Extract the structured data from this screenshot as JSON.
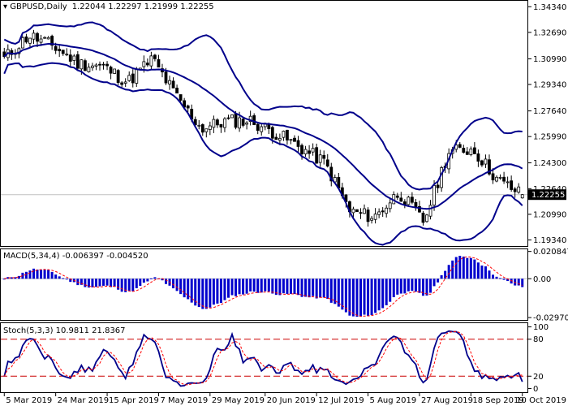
{
  "main_panel": {
    "header": {
      "symbol_label": "GBPUSD,Daily",
      "ohlc_text": "1.22044 1.22297 1.21999 1.22255",
      "arrow_icon": "triangle-down-icon"
    },
    "price_ticks": [
      "1.34340",
      "1.32690",
      "1.30990",
      "1.29340",
      "1.27640",
      "1.25990",
      "1.24300",
      "1.22640",
      "1.20990",
      "1.19340"
    ],
    "current_price": "1.22255",
    "current_price_value": 1.22255,
    "y_range": [
      1.1895,
      1.3472
    ]
  },
  "macd_panel": {
    "header": "MACD(5,34,4) -0.006397 -0.004520",
    "ticks": [
      "0.020847",
      "0.00",
      "-0.029702"
    ],
    "y_range": [
      -0.0315,
      0.0225
    ]
  },
  "stoch_panel": {
    "header": "Stoch(5,3,3) 10.9811 21.8367",
    "ticks": [
      "100",
      "80",
      "20",
      "0"
    ],
    "levels": [
      80,
      20
    ],
    "y_range": [
      -6,
      106
    ]
  },
  "dates": [
    "5 Mar 2019",
    "24 Mar 2019",
    "15 Apr 2019",
    "7 May 2019",
    "29 May 2019",
    "20 Jun 2019",
    "12 Jul 2019",
    "5 Aug 2019",
    "27 Aug 2019",
    "18 Sep 2019",
    "10 Oct 2019"
  ],
  "colors": {
    "background": "#ffffff",
    "border": "#000000",
    "bands": "#00008b",
    "macd_bars": "#0000cd",
    "signal_line": "#ff0000",
    "stoch_main": "#00008b",
    "stoch_signal": "#ff0000",
    "level_lines": "#cc0000",
    "current_price_line": "#c0c0c0",
    "price_tag_bg": "#000000",
    "price_tag_text": "#ffffff"
  },
  "chart_data": {
    "type": "candlestick",
    "title": "GBPUSD,Daily",
    "ohlc_last": {
      "open": 1.22044,
      "high": 1.22297,
      "low": 1.21999,
      "close": 1.22255
    },
    "price_trend": [
      {
        "x": "5 Mar 2019",
        "y": 1.31
      },
      {
        "x": "12 Mar 2019",
        "y": 1.325
      },
      {
        "x": "24 Mar 2019",
        "y": 1.318
      },
      {
        "x": "1 Apr 2019",
        "y": 1.307
      },
      {
        "x": "15 Apr 2019",
        "y": 1.305
      },
      {
        "x": "25 Apr 2019",
        "y": 1.295
      },
      {
        "x": "7 May 2019",
        "y": 1.31
      },
      {
        "x": "15 May 2019",
        "y": 1.285
      },
      {
        "x": "29 May 2019",
        "y": 1.265
      },
      {
        "x": "10 Jun 2019",
        "y": 1.27
      },
      {
        "x": "20 Jun 2019",
        "y": 1.27
      },
      {
        "x": "1 Jul 2019",
        "y": 1.262
      },
      {
        "x": "12 Jul 2019",
        "y": 1.253
      },
      {
        "x": "25 Jul 2019",
        "y": 1.243
      },
      {
        "x": "5 Aug 2019",
        "y": 1.212
      },
      {
        "x": "12 Aug 2019",
        "y": 1.208
      },
      {
        "x": "27 Aug 2019",
        "y": 1.224
      },
      {
        "x": "3 Sep 2019",
        "y": 1.205
      },
      {
        "x": "18 Sep 2019",
        "y": 1.25
      },
      {
        "x": "24 Sep 2019",
        "y": 1.252
      },
      {
        "x": "1 Oct 2019",
        "y": 1.232
      },
      {
        "x": "10 Oct 2019",
        "y": 1.2225
      }
    ],
    "macd_last": -0.006397,
    "macd_signal_last": -0.00452,
    "stoch_main_last": 10.9811,
    "stoch_signal_last": 21.8367,
    "ylim_price": [
      1.1934,
      1.3434
    ],
    "ylim_macd": [
      -0.029702,
      0.020847
    ],
    "ylim_stoch": [
      0,
      100
    ]
  }
}
